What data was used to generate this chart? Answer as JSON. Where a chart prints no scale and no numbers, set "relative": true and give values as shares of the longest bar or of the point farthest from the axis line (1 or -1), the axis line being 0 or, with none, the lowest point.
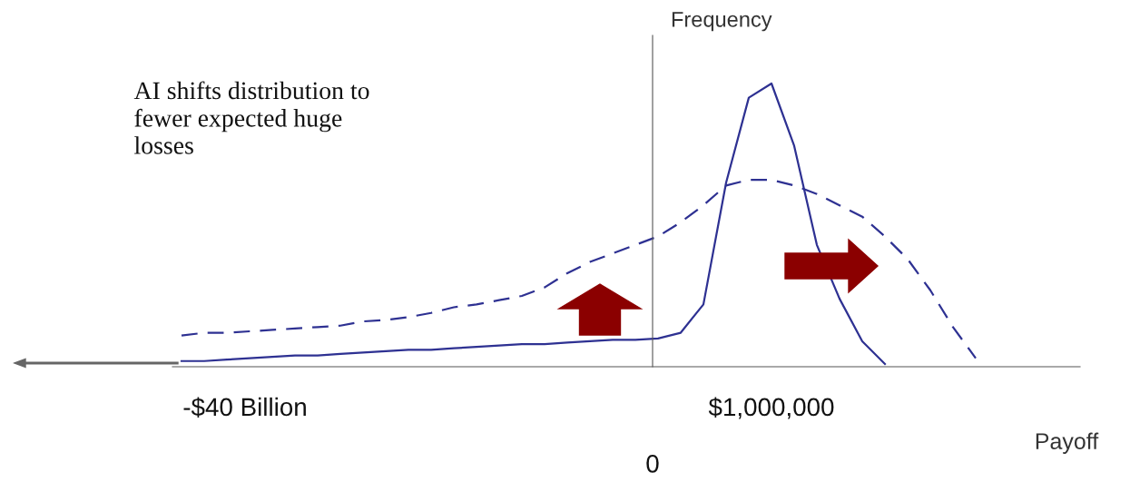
{
  "chart_data": {
    "type": "line",
    "relative": true,
    "xlabel": "Payoff",
    "ylabel": "Frequency",
    "categories": [
      null,
      null,
      null,
      null,
      null,
      null,
      null,
      null,
      null,
      null,
      null,
      null,
      null,
      null,
      null,
      null,
      null,
      null,
      null,
      null,
      null,
      null,
      null,
      null,
      null,
      null,
      null,
      null,
      null,
      null,
      null,
      null,
      null,
      null,
      null,
      null,
      null
    ],
    "series": [
      {
        "color": "#2e3192",
        "line_style": "solid",
        "values": [
          0.02,
          0.02,
          0.025,
          0.03,
          0.035,
          0.04,
          0.04,
          0.045,
          0.05,
          0.055,
          0.06,
          0.06,
          0.065,
          0.07,
          0.075,
          0.08,
          0.08,
          0.085,
          0.09,
          0.095,
          0.095,
          0.1,
          0.12,
          0.22,
          0.65,
          0.95,
          1.0,
          0.78,
          0.43,
          0.24,
          0.09,
          0.01,
          null,
          null,
          null,
          null,
          null
        ]
      },
      {
        "color": "#2e3192",
        "line_style": "dashed",
        "values": [
          0.11,
          0.12,
          0.12,
          0.125,
          0.13,
          0.135,
          0.14,
          0.145,
          0.16,
          0.165,
          0.175,
          0.19,
          0.21,
          0.22,
          0.235,
          0.25,
          0.28,
          0.33,
          0.37,
          0.4,
          0.43,
          0.46,
          0.51,
          0.57,
          0.64,
          0.66,
          0.66,
          0.64,
          0.61,
          0.57,
          0.53,
          0.46,
          0.38,
          0.27,
          0.14,
          0.03,
          null
        ]
      }
    ],
    "annotations": [
      "AI shifts distribution to\nfewer expected huge\nlosses",
      "-$40 Billion",
      "0",
      "$1,000,000"
    ]
  }
}
